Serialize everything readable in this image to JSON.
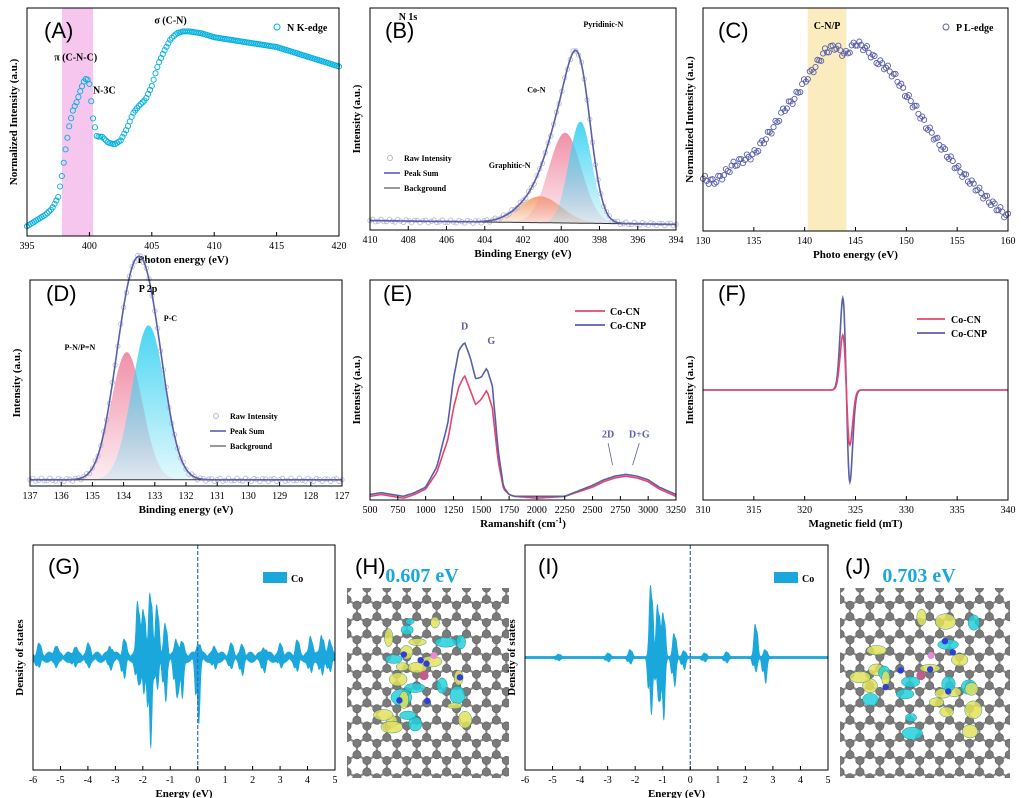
{
  "colors": {
    "cyan": "#00b0e0",
    "pink": "#e8456e",
    "navy": "#5a5fa8",
    "fill_pink": "#f08aa5",
    "fill_cyan": "#3fd3f2",
    "fill_orange": "#f3a06b",
    "band_pink": "#f7c6ef",
    "band_yellow": "#fbecc0",
    "dos": "#1aa8dc",
    "fermi": "#3a5dcc"
  },
  "chart_data": [
    {
      "panel": "(A)",
      "type": "scatter",
      "title": "",
      "xlabel": "Photon energy (eV)",
      "ylabel": "Normalized Intensity (a.u.)",
      "xlim": [
        395,
        420
      ],
      "xticks": [
        395,
        400,
        405,
        410,
        415,
        420
      ],
      "legend": [
        "N K-edge"
      ],
      "highlight": [
        397.8,
        400.3
      ],
      "annotations": [
        {
          "text": "π (C-N-C)",
          "x": 398.9,
          "y": 0.85
        },
        {
          "text": "N-3C",
          "x": 401.2,
          "y": 0.68
        },
        {
          "text": "σ (C-N)",
          "x": 406.5,
          "y": 1.04
        }
      ],
      "series": [
        {
          "x": [
            395,
            395.5,
            396,
            396.5,
            397,
            397.5,
            397.8,
            398.1,
            398.4,
            398.7,
            399,
            399.3,
            399.6,
            399.8,
            400,
            400.3,
            400.6,
            401,
            401.5,
            402,
            402.5,
            403,
            403.5,
            404,
            404.5,
            405,
            405.5,
            406,
            406.5,
            407,
            407.5,
            408,
            409,
            410,
            411,
            412,
            413,
            414,
            415,
            416,
            417,
            418,
            419,
            420
          ],
          "y": [
            0.0,
            0.02,
            0.04,
            0.06,
            0.09,
            0.15,
            0.26,
            0.4,
            0.52,
            0.6,
            0.64,
            0.7,
            0.75,
            0.76,
            0.73,
            0.55,
            0.46,
            0.46,
            0.43,
            0.42,
            0.44,
            0.5,
            0.58,
            0.62,
            0.65,
            0.72,
            0.83,
            0.9,
            0.96,
            0.99,
            1.0,
            1.0,
            0.99,
            0.97,
            0.96,
            0.95,
            0.94,
            0.93,
            0.92,
            0.9,
            0.88,
            0.86,
            0.84,
            0.82
          ]
        }
      ]
    },
    {
      "panel": "(B)",
      "type": "line",
      "title": "N 1s",
      "xlabel": "Binding Energy (eV)",
      "ylabel": "Intensity (a.u.)",
      "xlim": [
        410,
        394
      ],
      "xticks": [
        410,
        408,
        406,
        404,
        402,
        400,
        398,
        396,
        394
      ],
      "legend": [
        "Raw Intensity",
        "Peak Sum",
        "Background"
      ],
      "peaks": [
        {
          "name": "Graphitic-N",
          "center": 401.1,
          "height": 0.14,
          "width": 1.1
        },
        {
          "name": "Co-N",
          "center": 399.8,
          "height": 0.48,
          "width": 0.85
        },
        {
          "name": "Pyridinic-N",
          "center": 399.0,
          "height": 0.54,
          "width": 0.6
        }
      ],
      "annotations": [
        {
          "text": "Graphitic-N",
          "x": 402.7,
          "y": 0.33
        },
        {
          "text": "Co-N",
          "x": 401.3,
          "y": 0.73
        },
        {
          "text": "Pyridinic-N",
          "x": 397.8,
          "y": 1.08
        }
      ]
    },
    {
      "panel": "(C)",
      "type": "scatter",
      "title": "",
      "xlabel": "Photo energy (eV)",
      "ylabel": "Normalized Intensity (a.u.)",
      "xlim": [
        130,
        160
      ],
      "xticks": [
        130,
        135,
        140,
        145,
        150,
        155,
        160
      ],
      "legend": [
        "P L-edge"
      ],
      "highlight": [
        140.3,
        144.1
      ],
      "annotations": [
        {
          "text": "C-N/P",
          "x": 142.2,
          "y": 1.08
        }
      ],
      "series": [
        {
          "x": [
            130,
            131,
            132,
            133,
            134,
            135,
            136,
            137,
            138,
            139,
            140,
            141,
            142,
            143,
            144,
            145,
            146,
            147,
            148,
            149,
            150,
            151,
            152,
            153,
            154,
            155,
            156,
            157,
            158,
            159,
            160
          ],
          "y": [
            0.22,
            0.2,
            0.24,
            0.3,
            0.33,
            0.36,
            0.44,
            0.52,
            0.62,
            0.68,
            0.78,
            0.86,
            0.95,
            0.98,
            0.93,
            1.0,
            0.97,
            0.9,
            0.86,
            0.8,
            0.7,
            0.62,
            0.52,
            0.44,
            0.36,
            0.28,
            0.22,
            0.16,
            0.1,
            0.05,
            0.0
          ]
        }
      ]
    },
    {
      "panel": "(D)",
      "type": "line",
      "title": "P 2p",
      "xlabel": "Binding energy (eV)",
      "ylabel": "Intensity (a.u.)",
      "xlim": [
        137,
        127
      ],
      "xticks": [
        137,
        136,
        135,
        134,
        133,
        132,
        131,
        130,
        129,
        128,
        127
      ],
      "legend": [
        "Raw Intensity",
        "Peak Sum",
        "Background"
      ],
      "peaks": [
        {
          "name": "P-N/P=N",
          "center": 133.9,
          "height": 0.62,
          "width": 0.5
        },
        {
          "name": "P-C",
          "center": 133.2,
          "height": 0.75,
          "width": 0.52
        }
      ],
      "annotations": [
        {
          "text": "P-N/P=N",
          "x": 135.4,
          "y": 0.66
        },
        {
          "text": "P-C",
          "x": 132.5,
          "y": 0.8
        }
      ]
    },
    {
      "panel": "(E)",
      "type": "line",
      "title": "",
      "xlabel": "Ramanshift (cm",
      "xlabel_sup": "-1",
      "xlabel_tail": ")",
      "ylabel": "Intensity (a.u.)",
      "xlim": [
        500,
        3250
      ],
      "xticks": [
        500,
        750,
        1000,
        1250,
        1500,
        1750,
        2000,
        2250,
        2500,
        2750,
        3000,
        3250
      ],
      "legend": [
        "Co-CN",
        "Co-CNP"
      ],
      "annotations": [
        {
          "text": "D",
          "x": 1350,
          "y": 0.93
        },
        {
          "text": "G",
          "x": 1590,
          "y": 0.85
        },
        {
          "text": "2D",
          "x": 2640,
          "y": 0.34
        },
        {
          "text": "D+G",
          "x": 2920,
          "y": 0.34
        }
      ],
      "series": [
        {
          "name": "Co-CN",
          "x": [
            500,
            600,
            700,
            800,
            900,
            1000,
            1100,
            1200,
            1250,
            1300,
            1350,
            1400,
            1450,
            1500,
            1550,
            1600,
            1650,
            1700,
            1750,
            1800,
            2000,
            2250,
            2500,
            2600,
            2700,
            2800,
            2900,
            3000,
            3100,
            3250
          ],
          "y": [
            0.02,
            0.03,
            0.02,
            0.01,
            0.03,
            0.06,
            0.15,
            0.33,
            0.5,
            0.62,
            0.68,
            0.6,
            0.52,
            0.55,
            0.6,
            0.5,
            0.22,
            0.06,
            0.03,
            0.02,
            0.01,
            0.02,
            0.07,
            0.1,
            0.12,
            0.13,
            0.12,
            0.1,
            0.06,
            0.02
          ]
        },
        {
          "name": "Co-CNP",
          "x": [
            500,
            600,
            700,
            800,
            900,
            1000,
            1100,
            1200,
            1250,
            1300,
            1350,
            1400,
            1450,
            1500,
            1550,
            1600,
            1650,
            1700,
            1750,
            1800,
            2000,
            2250,
            2500,
            2600,
            2700,
            2800,
            2900,
            3000,
            3100,
            3250
          ],
          "y": [
            0.03,
            0.04,
            0.03,
            0.02,
            0.04,
            0.07,
            0.18,
            0.42,
            0.66,
            0.82,
            0.86,
            0.78,
            0.66,
            0.67,
            0.72,
            0.62,
            0.28,
            0.07,
            0.03,
            0.02,
            0.02,
            0.02,
            0.08,
            0.11,
            0.13,
            0.14,
            0.13,
            0.11,
            0.07,
            0.03
          ]
        }
      ]
    },
    {
      "panel": "(F)",
      "type": "line",
      "title": "",
      "xlabel": "Magnetic field (mT)",
      "ylabel": "Intensity (a.u.)",
      "xlim": [
        310,
        340
      ],
      "xticks": [
        310,
        315,
        320,
        325,
        330,
        335,
        340
      ],
      "legend": [
        "Co-CN",
        "Co-CNP"
      ],
      "series": [
        {
          "name": "Co-CN",
          "center": 324.1,
          "amplitude": 0.55,
          "width": 0.35
        },
        {
          "name": "Co-CNP",
          "center": 324.1,
          "amplitude": 0.92,
          "width": 0.35
        }
      ]
    },
    {
      "panel": "(G)",
      "type": "area",
      "title": "",
      "xlabel": "Energy (eV)",
      "ylabel": "Density of states",
      "xlim": [
        -6,
        5
      ],
      "xticks": [
        -6,
        -5,
        -4,
        -3,
        -2,
        -1,
        0,
        1,
        2,
        3,
        4,
        5
      ],
      "legend": [
        "Co"
      ],
      "fermi_level": 0,
      "spikes": [
        {
          "x": -5.8,
          "up": 0.08,
          "down": 0.06
        },
        {
          "x": -5.2,
          "up": 0.07,
          "down": 0.05
        },
        {
          "x": -4.5,
          "up": 0.06,
          "down": 0.06
        },
        {
          "x": -4.0,
          "up": 0.08,
          "down": 0.05
        },
        {
          "x": -3.2,
          "up": 0.07,
          "down": 0.07
        },
        {
          "x": -2.7,
          "up": 0.12,
          "down": 0.15
        },
        {
          "x": -2.2,
          "up": 0.45,
          "down": 0.22
        },
        {
          "x": -2.0,
          "up": 0.38,
          "down": 0.28
        },
        {
          "x": -1.75,
          "up": 0.55,
          "down": 0.78
        },
        {
          "x": -1.5,
          "up": 0.42,
          "down": 0.25
        },
        {
          "x": -1.2,
          "up": 0.25,
          "down": 0.35
        },
        {
          "x": -0.8,
          "up": 0.12,
          "down": 0.3
        },
        {
          "x": -0.6,
          "up": 0.1,
          "down": 0.35
        },
        {
          "x": 0.0,
          "up": 0.1,
          "down": 0.55
        },
        {
          "x": 0.6,
          "up": 0.06,
          "down": 0.08
        },
        {
          "x": 1.2,
          "up": 0.08,
          "down": 0.06
        },
        {
          "x": 1.6,
          "up": 0.07,
          "down": 0.12
        },
        {
          "x": 2.4,
          "up": 0.06,
          "down": 0.1
        },
        {
          "x": 3.0,
          "up": 0.08,
          "down": 0.06
        },
        {
          "x": 3.6,
          "up": 0.11,
          "down": 0.09
        },
        {
          "x": 4.1,
          "up": 0.15,
          "down": 0.12
        },
        {
          "x": 4.5,
          "up": 0.17,
          "down": 0.14
        },
        {
          "x": 4.8,
          "up": 0.12,
          "down": 0.1
        }
      ]
    },
    {
      "panel": "(H)",
      "type": "other",
      "title": "0.607 eV"
    },
    {
      "panel": "(I)",
      "type": "area",
      "title": "",
      "xlabel": "Energy (eV)",
      "ylabel": "Density of states",
      "xlim": [
        -6,
        5
      ],
      "xticks": [
        -6,
        -5,
        -4,
        -3,
        -2,
        -1,
        0,
        1,
        2,
        3,
        4,
        5
      ],
      "legend": [
        "Co"
      ],
      "fermi_level": 0,
      "spikes": [
        {
          "x": -4.8,
          "up": 0.02,
          "down": 0.02
        },
        {
          "x": -3.0,
          "up": 0.03,
          "down": 0.03
        },
        {
          "x": -2.2,
          "up": 0.06,
          "down": 0.05
        },
        {
          "x": -1.45,
          "up": 0.62,
          "down": 0.5
        },
        {
          "x": -1.2,
          "up": 0.45,
          "down": 0.35
        },
        {
          "x": -1.0,
          "up": 0.38,
          "down": 0.55
        },
        {
          "x": -0.6,
          "up": 0.2,
          "down": 0.25
        },
        {
          "x": -0.25,
          "up": 0.05,
          "down": 0.1
        },
        {
          "x": 0.5,
          "up": 0.03,
          "down": 0.03
        },
        {
          "x": 1.3,
          "up": 0.04,
          "down": 0.04
        },
        {
          "x": 2.35,
          "up": 0.28,
          "down": 0.12
        },
        {
          "x": 2.7,
          "up": 0.06,
          "down": 0.22
        }
      ]
    },
    {
      "panel": "(J)",
      "type": "other",
      "title": "0.703 eV"
    }
  ]
}
